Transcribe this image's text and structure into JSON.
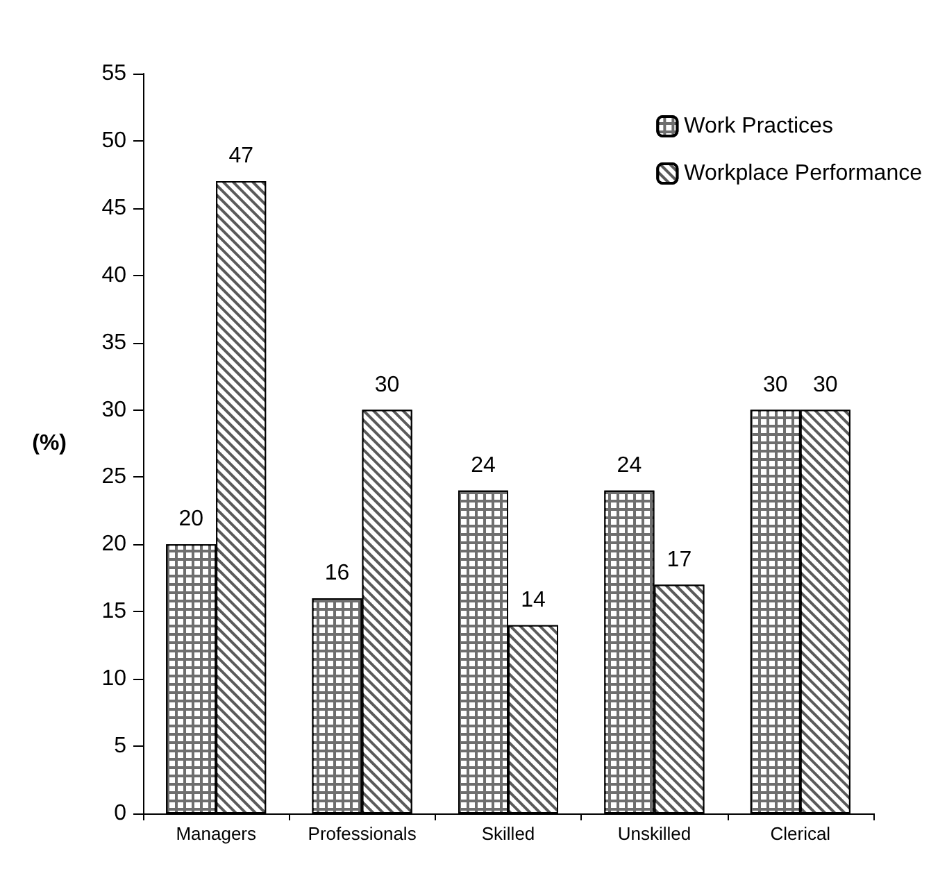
{
  "chart_data": {
    "type": "bar",
    "ylabel": "(%)",
    "categories": [
      "Managers",
      "Professionals",
      "Skilled",
      "Unskilled",
      "Clerical"
    ],
    "series": [
      {
        "name": "Work Practices",
        "color": "#6e6e6e",
        "values": [
          20,
          16,
          24,
          24,
          30
        ]
      },
      {
        "name": "Workplace Performance",
        "color": "#5a5a5a",
        "values": [
          47,
          30,
          14,
          17,
          30
        ]
      }
    ],
    "ylim": [
      0,
      55
    ],
    "yticks": [
      0,
      5,
      10,
      15,
      20,
      25,
      30,
      35,
      40,
      45,
      50,
      55
    ],
    "grid": false,
    "legend": "top right",
    "data_labels": true
  }
}
